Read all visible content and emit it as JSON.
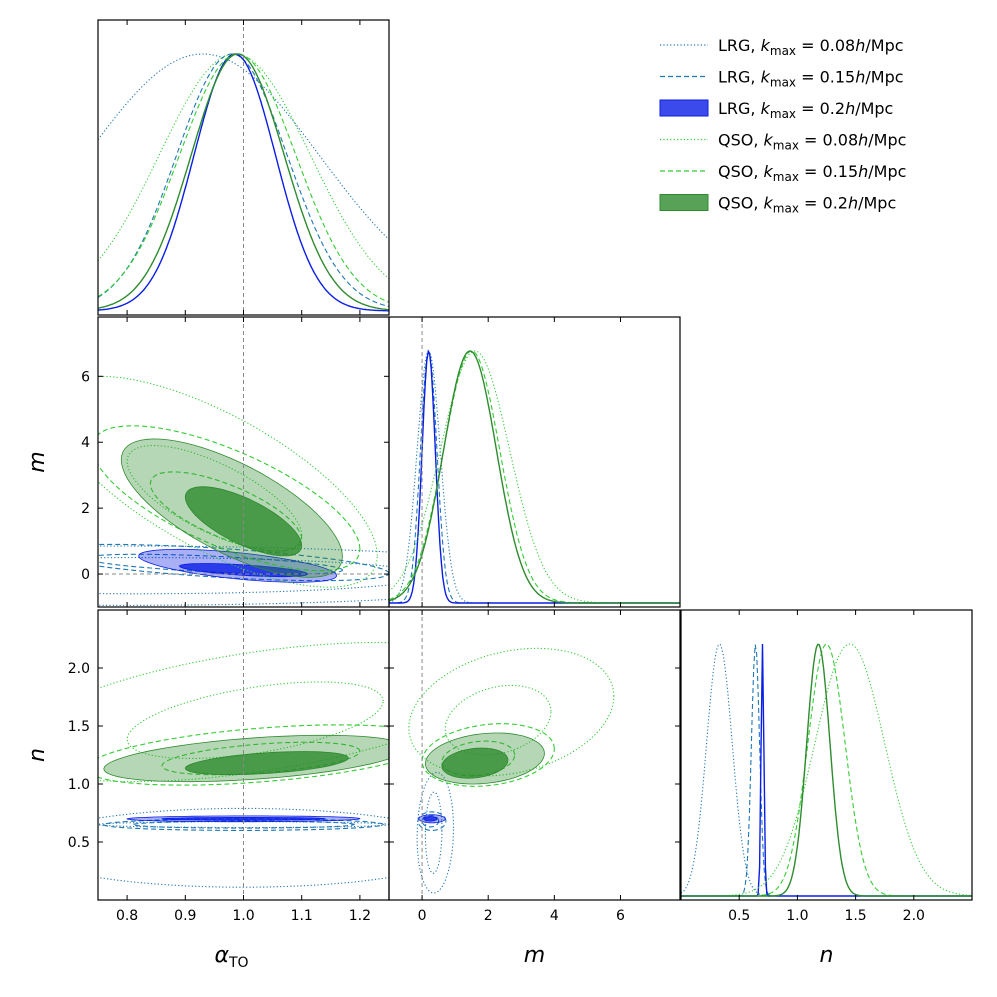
{
  "chart_data": {
    "type": "corner",
    "parameters": [
      {
        "key": "alpha",
        "label_main": "α",
        "label_sub": "TO",
        "range": [
          0.75,
          1.25
        ],
        "ticks": [
          0.8,
          0.9,
          1.0,
          1.1,
          1.2
        ],
        "tick_labels": [
          "0.8",
          "0.9",
          "1.0",
          "1.1",
          "1.2"
        ],
        "reference": 1.0
      },
      {
        "key": "m",
        "label_main": "m",
        "label_sub": "",
        "range": [
          -1.0,
          7.8
        ],
        "ticks": [
          0,
          2,
          4,
          6
        ],
        "tick_labels": [
          "0",
          "2",
          "4",
          "6"
        ],
        "reference": 0
      },
      {
        "key": "n",
        "label_main": "n",
        "label_sub": "",
        "range": [
          0.0,
          2.5
        ],
        "ticks": [
          0.5,
          1.0,
          1.5,
          2.0
        ],
        "tick_labels": [
          "0.5",
          "1.0",
          "1.5",
          "2.0"
        ],
        "reference": null
      }
    ],
    "legend_position": "top-right",
    "series": [
      {
        "id": "lrg008",
        "tracer": "LRG",
        "kmax_value": "0.08",
        "color": "#1f77b4",
        "style": "dotted",
        "marg": {
          "alpha": [
            0.93,
            0.2
          ],
          "m": [
            0.2,
            0.35
          ],
          "n": [
            0.33,
            0.11
          ]
        },
        "pairs": {
          "alpha_m": [
            [
              0.82,
              -0.05,
              0.5,
              0.55,
              0
            ],
            [
              0.8,
              -0.05,
              0.75,
              0.9,
              0
            ]
          ],
          "alpha_n": [
            [
              1.0,
              0.65,
              0.25,
              0.025,
              0
            ],
            [
              1.0,
              0.45,
              0.38,
              0.34,
              0
            ]
          ],
          "m_n": [
            [
              0.35,
              0.58,
              0.25,
              0.35,
              0.05
            ],
            [
              0.4,
              0.58,
              0.55,
              0.52,
              0.08
            ]
          ]
        }
      },
      {
        "id": "lrg015",
        "tracer": "LRG",
        "kmax_value": "0.15",
        "color": "#1f77b4",
        "style": "dashed",
        "marg": {
          "alpha": [
            0.98,
            0.095
          ],
          "m": [
            0.2,
            0.25
          ],
          "n": [
            0.64,
            0.035
          ]
        },
        "pairs": {
          "alpha_m": [
            [
              0.95,
              0.3,
              0.22,
              0.3,
              -0.6
            ],
            [
              0.95,
              0.35,
              0.3,
              0.55,
              -0.6
            ]
          ],
          "alpha_n": [
            [
              1.0,
              0.65,
              0.19,
              0.03,
              0.02
            ],
            [
              1.0,
              0.65,
              0.24,
              0.05,
              0.02
            ]
          ],
          "m_n": [
            [
              0.25,
              0.68,
              0.25,
              0.05,
              0
            ],
            [
              0.3,
              0.68,
              0.42,
              0.08,
              0
            ]
          ]
        }
      },
      {
        "id": "lrg02",
        "tracer": "LRG",
        "kmax_value": "0.2",
        "color": "#0a1ee6",
        "style": "filled",
        "marg": {
          "alpha": [
            0.985,
            0.07
          ],
          "m": [
            0.2,
            0.2
          ],
          "n": [
            0.7,
            0.012
          ]
        },
        "pairs": {
          "alpha_m": [
            [
              1.0,
              0.12,
              0.11,
              0.2,
              -0.6
            ],
            [
              0.99,
              0.25,
              0.17,
              0.5,
              -0.6
            ]
          ],
          "alpha_n": [
            [
              1.0,
              0.7,
              0.14,
              0.012,
              0.05
            ],
            [
              1.0,
              0.7,
              0.2,
              0.025,
              0.05
            ]
          ],
          "m_n": [
            [
              0.25,
              0.7,
              0.2,
              0.02,
              0
            ],
            [
              0.3,
              0.7,
              0.4,
              0.035,
              0
            ]
          ]
        }
      },
      {
        "id": "qso008",
        "tracer": "QSO",
        "kmax_value": "0.08",
        "color": "#33cc33",
        "style": "dotted",
        "marg": {
          "alpha": [
            0.985,
            0.13
          ],
          "m": [
            1.6,
            1.05
          ],
          "n": [
            1.45,
            0.3
          ]
        },
        "pairs": {
          "alpha_m": [
            [
              0.95,
              2.3,
              0.15,
              1.6,
              -0.7
            ],
            [
              0.95,
              2.8,
              0.28,
              3.2,
              -0.7
            ]
          ],
          "alpha_n": [
            [
              1.02,
              1.55,
              0.22,
              0.33,
              0.5
            ],
            [
              1.02,
              1.62,
              0.42,
              0.6,
              0.5
            ]
          ],
          "m_n": [
            [
              2.3,
              1.55,
              1.6,
              0.3,
              0.25
            ],
            [
              2.7,
              1.62,
              3.1,
              0.55,
              0.25
            ]
          ]
        }
      },
      {
        "id": "qso015",
        "tracer": "QSO",
        "kmax_value": "0.15",
        "color": "#33cc33",
        "style": "dashed",
        "marg": {
          "alpha": [
            0.99,
            0.1
          ],
          "m": [
            1.5,
            0.85
          ],
          "n": [
            1.25,
            0.16
          ]
        },
        "pairs": {
          "alpha_m": [
            [
              0.97,
              1.9,
              0.13,
              1.2,
              -0.7
            ],
            [
              0.97,
              2.3,
              0.23,
              2.2,
              -0.7
            ]
          ],
          "alpha_n": [
            [
              1.03,
              1.22,
              0.17,
              0.14,
              0.45
            ],
            [
              1.03,
              1.25,
              0.3,
              0.26,
              0.45
            ]
          ],
          "m_n": [
            [
              1.7,
              1.22,
              1.1,
              0.15,
              0.2
            ],
            [
              2.0,
              1.25,
              2.0,
              0.27,
              0.2
            ]
          ]
        }
      },
      {
        "id": "qso02",
        "tracer": "QSO",
        "kmax_value": "0.2",
        "color": "#2e8b2e",
        "style": "filled",
        "marg": {
          "alpha": [
            0.99,
            0.08
          ],
          "m": [
            1.45,
            0.8
          ],
          "n": [
            1.18,
            0.1
          ]
        },
        "pairs": {
          "alpha_m": [
            [
              1.0,
              1.6,
              0.1,
              1.05,
              -0.7
            ],
            [
              0.98,
              2.0,
              0.19,
              2.1,
              -0.7
            ]
          ],
          "alpha_n": [
            [
              1.04,
              1.18,
              0.14,
              0.1,
              0.45
            ],
            [
              1.02,
              1.22,
              0.26,
              0.2,
              0.45
            ]
          ],
          "m_n": [
            [
              1.6,
              1.18,
              1.0,
              0.13,
              0.2
            ],
            [
              1.9,
              1.22,
              1.8,
              0.22,
              0.2
            ]
          ]
        }
      }
    ],
    "legend": [
      {
        "series": "lrg008",
        "prefix": "LRG, ",
        "kmax_label": "k",
        "kmax_sub": "max",
        "value_text": " = 0.08",
        "unit_h": "h",
        "unit_rest": "/Mpc"
      },
      {
        "series": "lrg015",
        "prefix": "LRG, ",
        "kmax_label": "k",
        "kmax_sub": "max",
        "value_text": " = 0.15",
        "unit_h": "h",
        "unit_rest": "/Mpc"
      },
      {
        "series": "lrg02",
        "prefix": "LRG, ",
        "kmax_label": "k",
        "kmax_sub": "max",
        "value_text": " = 0.2",
        "unit_h": "h",
        "unit_rest": "/Mpc"
      },
      {
        "series": "qso008",
        "prefix": "QSO, ",
        "kmax_label": "k",
        "kmax_sub": "max",
        "value_text": " = 0.08",
        "unit_h": "h",
        "unit_rest": "/Mpc"
      },
      {
        "series": "qso015",
        "prefix": "QSO, ",
        "kmax_label": "k",
        "kmax_sub": "max",
        "value_text": " = 0.15",
        "unit_h": "h",
        "unit_rest": "/Mpc"
      },
      {
        "series": "qso02",
        "prefix": "QSO, ",
        "kmax_label": "k",
        "kmax_sub": "max",
        "value_text": " = 0.2",
        "unit_h": "h",
        "unit_rest": "/Mpc"
      }
    ]
  }
}
